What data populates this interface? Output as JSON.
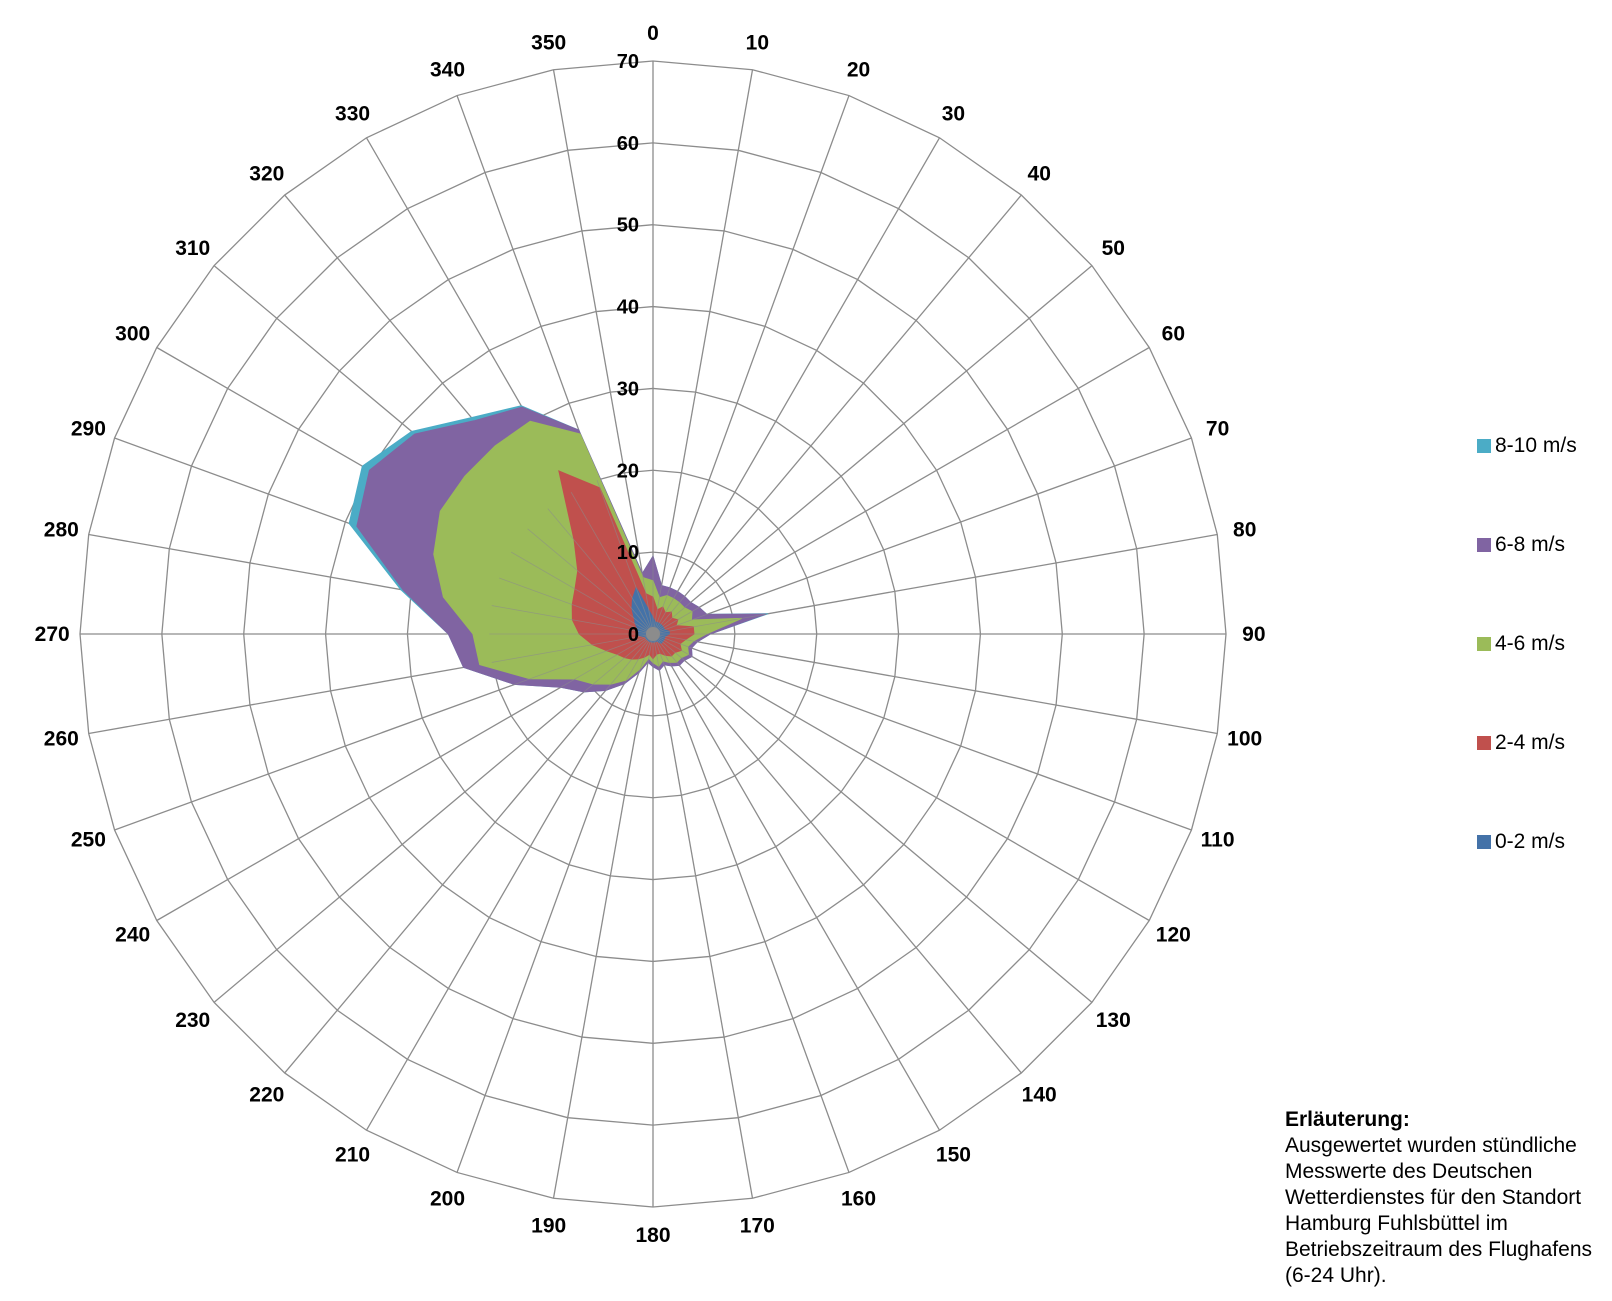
{
  "chart_data": {
    "type": "radar",
    "subtype": "stacked-area",
    "directions": [
      0,
      10,
      20,
      30,
      40,
      50,
      60,
      70,
      80,
      90,
      100,
      110,
      120,
      130,
      140,
      150,
      160,
      170,
      180,
      190,
      200,
      210,
      220,
      230,
      240,
      250,
      260,
      270,
      280,
      290,
      300,
      310,
      320,
      330,
      340,
      350
    ],
    "direction_labels": [
      "0",
      "10",
      "20",
      "30",
      "40",
      "50",
      "60",
      "70",
      "80",
      "90",
      "100",
      "110",
      "120",
      "130",
      "140",
      "150",
      "160",
      "170",
      "180",
      "190",
      "200",
      "210",
      "220",
      "230",
      "240",
      "250",
      "260",
      "270",
      "280",
      "290",
      "300",
      "310",
      "320",
      "330",
      "340",
      "350"
    ],
    "radial_ticks": [
      0,
      10,
      20,
      30,
      40,
      50,
      60,
      70
    ],
    "radial_tick_labels": [
      "0",
      "10",
      "20",
      "30",
      "40",
      "50",
      "60",
      "70"
    ],
    "rmax": 70,
    "stacking": "cumulative",
    "series": [
      {
        "name": "0-2 m/s",
        "color": "#4472a8",
        "values": [
          2,
          1.5,
          1.5,
          1.5,
          1.5,
          1.5,
          1.5,
          1.5,
          2,
          2,
          1.5,
          1.5,
          1.5,
          1.5,
          1.5,
          1,
          1,
          1,
          1,
          1,
          1,
          1,
          1,
          1,
          1,
          1,
          1.5,
          2,
          2,
          2,
          2.5,
          3,
          4,
          5,
          6,
          3
        ]
      },
      {
        "name": "2-4 m/s",
        "color": "#c0504d",
        "values": [
          2.5,
          1.5,
          2,
          1.5,
          2,
          1.5,
          2,
          1.5,
          3,
          3,
          2.5,
          2,
          2.5,
          2,
          2,
          2,
          1.5,
          1.5,
          2,
          1.5,
          2,
          2.5,
          3,
          3.5,
          4,
          5,
          6,
          7,
          8,
          8.5,
          8.5,
          9,
          11,
          18,
          13,
          2
        ]
      },
      {
        "name": "4-6 m/s",
        "color": "#9bbb59",
        "values": [
          2,
          1.5,
          1.5,
          2,
          1.5,
          2,
          2,
          2,
          6,
          1.5,
          1,
          1,
          1,
          1,
          1,
          1,
          1,
          1.5,
          0.5,
          0.5,
          1.5,
          3,
          4,
          5,
          6,
          10,
          14,
          13,
          16,
          18,
          19,
          18,
          15,
          7,
          7,
          2
        ]
      },
      {
        "name": "6-8 m/s",
        "color": "#8064a2",
        "values": [
          3,
          1.5,
          1,
          1,
          1,
          1,
          1,
          2,
          3,
          0.5,
          0.5,
          0.5,
          0.5,
          0.5,
          0.5,
          0.5,
          0.5,
          0.5,
          0.5,
          0.5,
          0.5,
          0.5,
          1,
          1.5,
          2,
          2,
          2,
          3,
          5,
          10,
          10,
          8,
          4,
          2,
          0.5,
          0.5
        ]
      },
      {
        "name": "8-10 m/s",
        "color": "#4bacc6",
        "values": [
          0,
          0,
          0,
          0,
          0,
          0,
          0,
          0,
          0.3,
          0,
          0,
          0,
          0,
          0,
          0,
          0,
          0,
          0,
          0,
          0,
          0,
          0,
          0,
          0,
          0,
          0,
          0,
          0,
          0.3,
          1,
          1,
          0.5,
          0.5,
          0.2,
          0,
          0
        ]
      }
    ],
    "legend_position": "right",
    "grid": true
  },
  "note": {
    "title": "Erläuterung:",
    "lines": [
      "Ausgewertet wurden stündliche",
      "Messwerte des Deutschen",
      "Wetterdienstes für den Standort",
      "Hamburg Fuhlsbüttel im",
      "Betriebszeitraum des Flughafens",
      "(6-24 Uhr)."
    ]
  }
}
